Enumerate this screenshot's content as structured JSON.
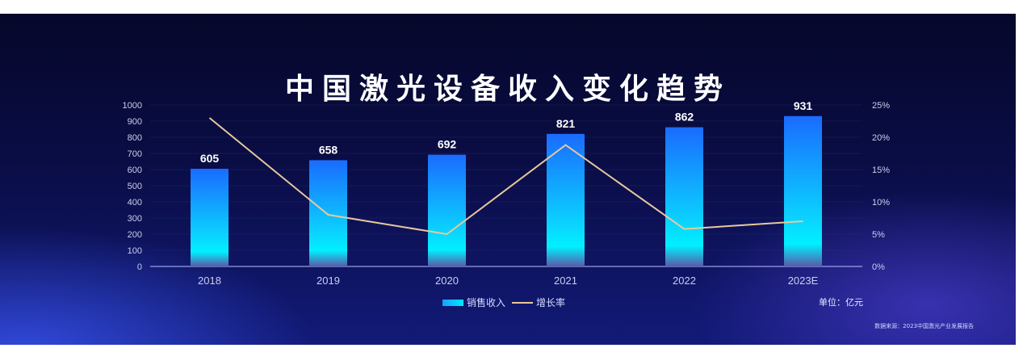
{
  "title": "中国激光设备收入变化趋势",
  "unit_label": "单位：亿元",
  "source_label": "数据来源：2023中国激光产业发展报告",
  "legend": {
    "bar_label": "销售收入",
    "line_label": "增长率"
  },
  "colors": {
    "bar_top": "#1a6bff",
    "bar_bottom": "#00f0ff",
    "line": "#e8c99a"
  },
  "chart_data": {
    "type": "bar",
    "categories": [
      "2018",
      "2019",
      "2020",
      "2021",
      "2022",
      "2023E"
    ],
    "series": [
      {
        "name": "销售收入",
        "type": "bar",
        "axis": "left",
        "values": [
          605,
          658,
          692,
          821,
          862,
          931
        ]
      },
      {
        "name": "增长率",
        "type": "line",
        "axis": "right",
        "values": [
          23.0,
          8.0,
          5.0,
          18.8,
          5.8,
          7.0
        ]
      }
    ],
    "ylim": [
      0,
      1000
    ],
    "yticks": [
      0,
      100,
      200,
      300,
      400,
      500,
      600,
      700,
      800,
      900,
      1000
    ],
    "y2lim": [
      0,
      25
    ],
    "y2ticks": [
      "0%",
      "5%",
      "10%",
      "15%",
      "20%",
      "25%"
    ],
    "data_labels": [
      "605",
      "658",
      "692",
      "821",
      "862",
      "931"
    ],
    "legend_position": "bottom",
    "grid": true
  }
}
